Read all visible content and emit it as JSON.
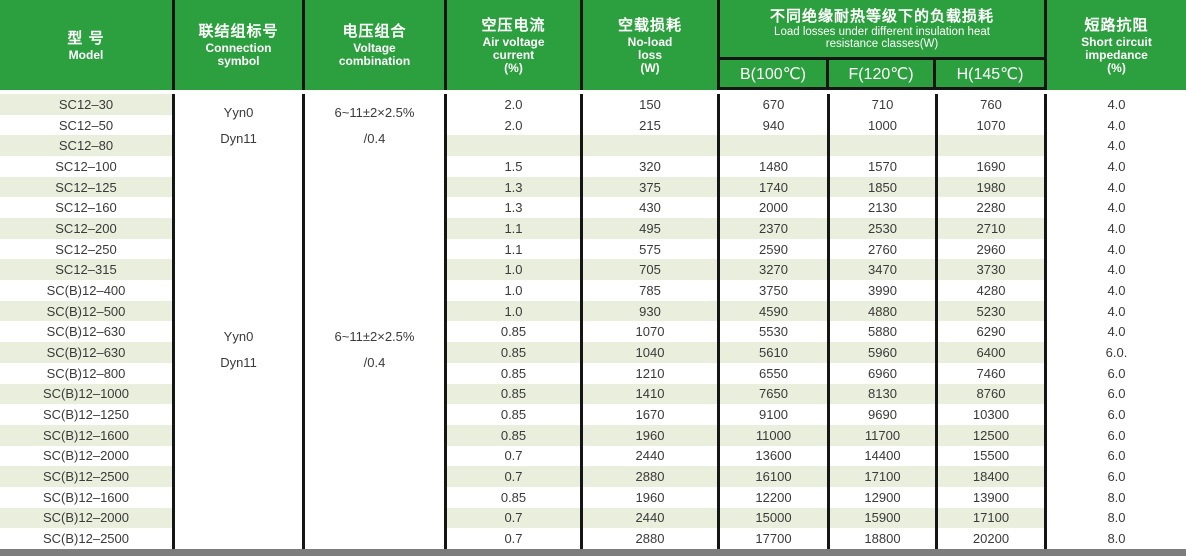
{
  "colors": {
    "header_green": "#2c9f3e",
    "row_stripe": "#eaeedc",
    "border_black": "#151515",
    "bottom_bar_gray": "#7d7d7d"
  },
  "table": {
    "columns": {
      "model": {
        "zh": "型 号",
        "en": "Model"
      },
      "connection": {
        "zh": "联结组标号",
        "en1": "Connection",
        "en2": "symbol"
      },
      "voltage": {
        "zh": "电压组合",
        "en1": "Voltage",
        "en2": "combination"
      },
      "air": {
        "zh": "空压电流",
        "en1": "Air voltage",
        "en2": "current",
        "en3": "(%)"
      },
      "noload": {
        "zh": "空载损耗",
        "en1": "No-load",
        "en2": "loss",
        "en3": "(W)"
      },
      "loadloss": {
        "zh": "不同绝缘耐热等级下的负载损耗",
        "en1": "Load losses under different insulation heat",
        "en2": "resistance classes(W)",
        "sub": [
          "B(100℃)",
          "F(120℃)",
          "H(145℃)"
        ]
      },
      "impedance": {
        "zh": "短路抗阻",
        "en1": "Short circuit",
        "en2": "impedance",
        "en3": "(%)"
      }
    },
    "merged": {
      "group1": {
        "connection": [
          "Yyn0",
          "Dyn11"
        ],
        "voltage": [
          "6~11±2×2.5%",
          "/0.4"
        ]
      },
      "group2": {
        "connection": [
          "Yyn0",
          "Dyn11"
        ],
        "voltage": [
          "6~11±2×2.5%",
          "/0.4"
        ]
      }
    },
    "rows": [
      {
        "model": "SC12–30",
        "air": "2.0",
        "noload": "150",
        "b": "670",
        "f": "710",
        "h": "760",
        "imp": "4.0"
      },
      {
        "model": "SC12–50",
        "air": "2.0",
        "noload": "215",
        "b": "940",
        "f": "1000",
        "h": "1070",
        "imp": "4.0"
      },
      {
        "model": "SC12–80",
        "air": "",
        "noload": "",
        "b": "",
        "f": "",
        "h": "",
        "imp": "4.0"
      },
      {
        "model": "SC12–100",
        "air": "1.5",
        "noload": "320",
        "b": "1480",
        "f": "1570",
        "h": "1690",
        "imp": "4.0"
      },
      {
        "model": "SC12–125",
        "air": "1.3",
        "noload": "375",
        "b": "1740",
        "f": "1850",
        "h": "1980",
        "imp": "4.0"
      },
      {
        "model": "SC12–160",
        "air": "1.3",
        "noload": "430",
        "b": "2000",
        "f": "2130",
        "h": "2280",
        "imp": "4.0"
      },
      {
        "model": "SC12–200",
        "air": "1.1",
        "noload": "495",
        "b": "2370",
        "f": "2530",
        "h": "2710",
        "imp": "4.0"
      },
      {
        "model": "SC12–250",
        "air": "1.1",
        "noload": "575",
        "b": "2590",
        "f": "2760",
        "h": "2960",
        "imp": "4.0"
      },
      {
        "model": "SC12–315",
        "air": "1.0",
        "noload": "705",
        "b": "3270",
        "f": "3470",
        "h": "3730",
        "imp": "4.0"
      },
      {
        "model": "SC(B)12–400",
        "air": "1.0",
        "noload": "785",
        "b": "3750",
        "f": "3990",
        "h": "4280",
        "imp": "4.0"
      },
      {
        "model": "SC(B)12–500",
        "air": "1.0",
        "noload": "930",
        "b": "4590",
        "f": "4880",
        "h": "5230",
        "imp": "4.0"
      },
      {
        "model": "SC(B)12–630",
        "air": "0.85",
        "noload": "1070",
        "b": "5530",
        "f": "5880",
        "h": "6290",
        "imp": "4.0"
      },
      {
        "model": "SC(B)12–630",
        "air": "0.85",
        "noload": "1040",
        "b": "5610",
        "f": "5960",
        "h": "6400",
        "imp": "6.0."
      },
      {
        "model": "SC(B)12–800",
        "air": "0.85",
        "noload": "1210",
        "b": "6550",
        "f": "6960",
        "h": "7460",
        "imp": "6.0"
      },
      {
        "model": "SC(B)12–1000",
        "air": "0.85",
        "noload": "1410",
        "b": "7650",
        "f": "8130",
        "h": "8760",
        "imp": "6.0"
      },
      {
        "model": "SC(B)12–1250",
        "air": "0.85",
        "noload": "1670",
        "b": "9100",
        "f": "9690",
        "h": "10300",
        "imp": "6.0"
      },
      {
        "model": "SC(B)12–1600",
        "air": "0.85",
        "noload": "1960",
        "b": "11000",
        "f": "11700",
        "h": "12500",
        "imp": "6.0"
      },
      {
        "model": "SC(B)12–2000",
        "air": "0.7",
        "noload": "2440",
        "b": "13600",
        "f": "14400",
        "h": "15500",
        "imp": "6.0"
      },
      {
        "model": "SC(B)12–2500",
        "air": "0.7",
        "noload": "2880",
        "b": "16100",
        "f": "17100",
        "h": "18400",
        "imp": "6.0"
      },
      {
        "model": "SC(B)12–1600",
        "air": "0.85",
        "noload": "1960",
        "b": "12200",
        "f": "12900",
        "h": "13900",
        "imp": "8.0"
      },
      {
        "model": "SC(B)12–2000",
        "air": "0.7",
        "noload": "2440",
        "b": "15000",
        "f": "15900",
        "h": "17100",
        "imp": "8.0"
      },
      {
        "model": "SC(B)12–2500",
        "air": "0.7",
        "noload": "2880",
        "b": "17700",
        "f": "18800",
        "h": "20200",
        "imp": "8.0"
      }
    ]
  }
}
